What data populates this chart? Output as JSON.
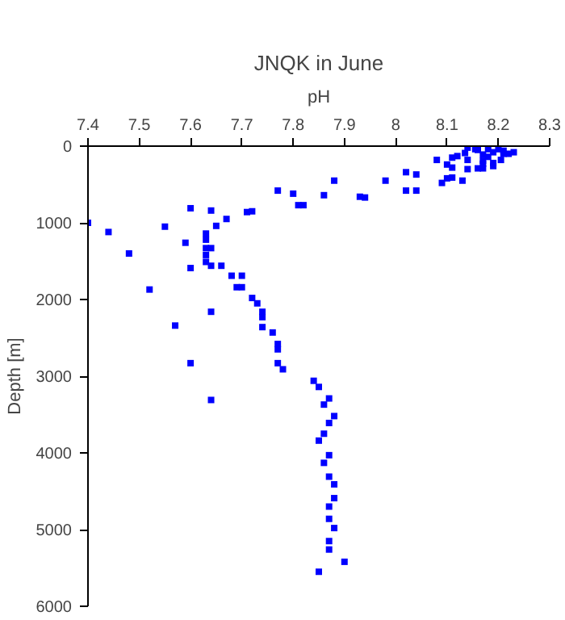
{
  "chart_data": {
    "type": "scatter",
    "title": "JNQK in June",
    "xlabel": "pH",
    "ylabel": "Depth [m]",
    "xlim": [
      7.4,
      8.3
    ],
    "xticks": [
      7.4,
      7.5,
      7.6,
      7.7,
      7.8,
      7.9,
      8,
      8.1,
      8.2,
      8.3
    ],
    "ylim": [
      6000,
      0
    ],
    "yticks": [
      0,
      1000,
      2000,
      3000,
      4000,
      5000,
      6000
    ],
    "grid": false,
    "marker": "square",
    "series": [
      {
        "color": "#0000ff",
        "x": [
          7.4,
          7.44,
          7.48,
          7.55,
          7.6,
          7.59,
          7.63,
          7.63,
          7.63,
          7.63,
          7.64,
          7.64,
          7.65,
          7.67,
          7.71,
          7.72,
          7.77,
          7.8,
          7.81,
          7.82,
          7.86,
          7.88,
          7.93,
          7.94,
          7.98,
          8.02,
          8.04,
          8.02,
          8.04,
          8.08,
          8.09,
          8.1,
          8.11,
          8.1,
          8.11,
          8.11,
          8.12,
          8.13,
          8.135,
          8.14,
          8.14,
          8.14,
          8.155,
          8.16,
          8.16,
          8.17,
          8.17,
          8.17,
          8.17,
          8.18,
          8.18,
          8.19,
          8.19,
          8.19,
          8.2,
          8.21,
          8.205,
          8.21,
          8.22,
          8.23,
          7.63,
          7.6,
          7.64,
          7.66,
          7.68,
          7.7,
          7.69,
          7.7,
          7.72,
          7.73,
          7.52,
          7.64,
          7.57,
          7.74,
          7.74,
          7.74,
          7.76,
          7.77,
          7.77,
          7.77,
          7.78,
          7.6,
          7.84,
          7.85,
          7.87,
          7.86,
          7.88,
          7.64,
          7.87,
          7.86,
          7.85,
          7.87,
          7.86,
          7.87,
          7.88,
          7.88,
          7.87,
          7.87,
          7.88,
          7.87,
          7.87,
          7.9,
          7.85
        ],
        "values": [
          1000,
          1120,
          1400,
          1050,
          810,
          1260,
          1140,
          1220,
          1330,
          1420,
          1330,
          840,
          1040,
          950,
          860,
          850,
          580,
          620,
          770,
          770,
          640,
          450,
          660,
          670,
          450,
          340,
          370,
          580,
          580,
          180,
          480,
          420,
          410,
          240,
          150,
          280,
          130,
          450,
          90,
          300,
          180,
          20,
          40,
          50,
          290,
          110,
          190,
          230,
          290,
          40,
          140,
          260,
          220,
          80,
          40,
          100,
          180,
          60,
          100,
          80,
          1510,
          1590,
          1560,
          1560,
          1690,
          1690,
          1840,
          1840,
          1980,
          2050,
          1870,
          2160,
          2340,
          2160,
          2230,
          2360,
          2430,
          2580,
          2650,
          2830,
          2910,
          2830,
          3060,
          3140,
          3290,
          3370,
          3520,
          3310,
          3610,
          3750,
          3840,
          4030,
          4130,
          4310,
          4410,
          4590,
          4700,
          4860,
          4980,
          5150,
          5260,
          5420,
          5550
        ]
      }
    ]
  }
}
